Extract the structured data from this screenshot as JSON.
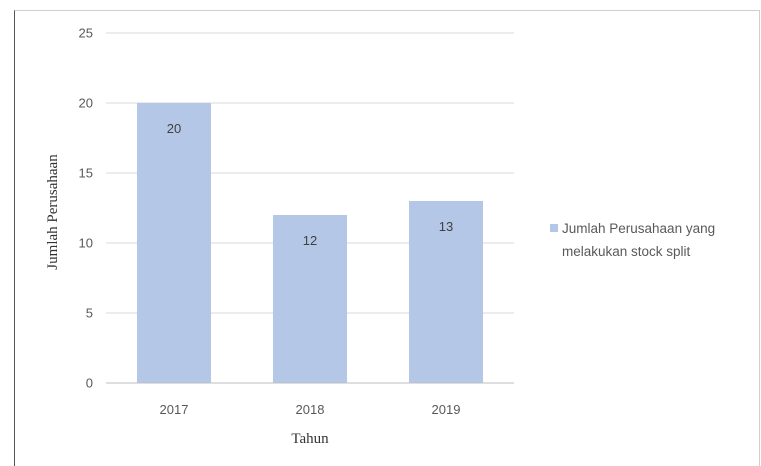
{
  "chart_data": {
    "type": "bar",
    "title": "",
    "xlabel": "Tahun",
    "ylabel": "Jumlah Perusahaan",
    "categories": [
      "2017",
      "2018",
      "2019"
    ],
    "series": [
      {
        "name": "Jumlah Perusahaan yang melakukan stock split",
        "values": [
          20,
          12,
          13
        ]
      }
    ],
    "ylim": [
      0,
      25
    ],
    "yticks": [
      "0",
      "5",
      "10",
      "15",
      "20",
      "25"
    ],
    "grid": true,
    "legend_position": "right",
    "legend_lines": [
      "Jumlah Perusahaan yang",
      "melakukan stock split"
    ],
    "colors": {
      "bar": "#b4c7e7",
      "grid": "#d9d9d9",
      "axis": "#bfbfbf"
    }
  }
}
